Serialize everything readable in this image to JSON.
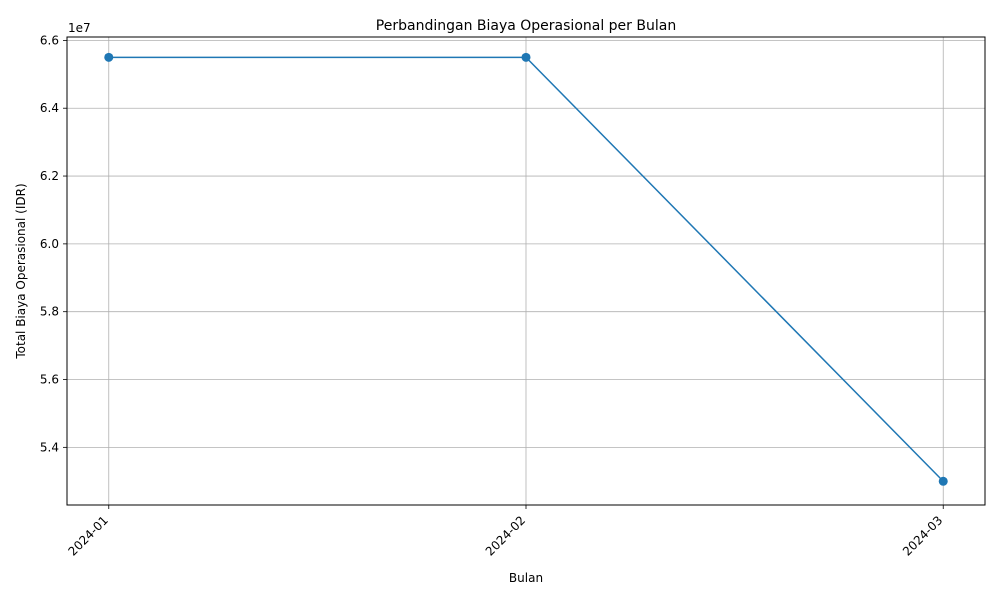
{
  "chart_data": {
    "type": "line",
    "title": "Perbandingan Biaya Operasional per Bulan",
    "xlabel": "Bulan",
    "ylabel": "Total Biaya Operasional (IDR)",
    "y_offset_label": "1e7",
    "categories": [
      "2024-01",
      "2024-02",
      "2024-03"
    ],
    "series": [
      {
        "values": [
          65500000,
          65500000,
          53000000
        ],
        "color": "#1f77b4",
        "marker": "circle"
      }
    ],
    "ylim": [
      52300000,
      66100000
    ],
    "yticks": [
      54000000,
      56000000,
      58000000,
      60000000,
      62000000,
      64000000,
      66000000
    ],
    "ytick_labels": [
      "5.4",
      "5.6",
      "5.8",
      "6.0",
      "6.2",
      "6.4",
      "6.6"
    ],
    "xtick_rotation": 45,
    "grid": true,
    "legend": "none"
  }
}
